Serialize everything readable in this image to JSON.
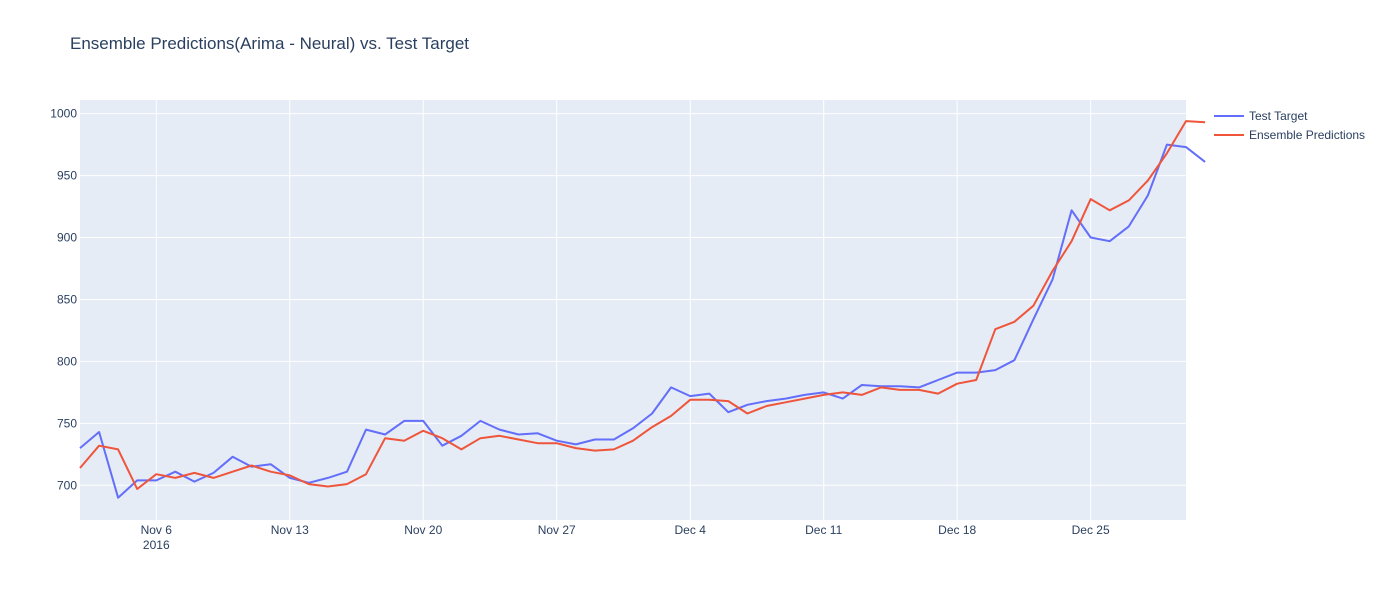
{
  "chart_data": {
    "type": "line",
    "title": "Ensemble Predictions(Arima - Neural) vs. Test Target",
    "xlabel": "",
    "ylabel": "",
    "x_start": "2016-11-02",
    "x_end": "2016-12-30",
    "xlim": [
      "2016-11-02",
      "2016-12-30"
    ],
    "ylim": [
      672,
      1011
    ],
    "y_ticks": [
      700,
      750,
      800,
      850,
      900,
      950,
      1000
    ],
    "x_ticks": [
      {
        "date": "2016-11-06",
        "label": "Nov 6",
        "sublabel": "2016"
      },
      {
        "date": "2016-11-13",
        "label": "Nov 13",
        "sublabel": ""
      },
      {
        "date": "2016-11-20",
        "label": "Nov 20",
        "sublabel": ""
      },
      {
        "date": "2016-11-27",
        "label": "Nov 27",
        "sublabel": ""
      },
      {
        "date": "2016-12-04",
        "label": "Dec 4",
        "sublabel": ""
      },
      {
        "date": "2016-12-11",
        "label": "Dec 11",
        "sublabel": ""
      },
      {
        "date": "2016-12-18",
        "label": "Dec 18",
        "sublabel": ""
      },
      {
        "date": "2016-12-25",
        "label": "Dec 25",
        "sublabel": ""
      }
    ],
    "grid": true,
    "legend_position": "top-right",
    "series": [
      {
        "name": "Test Target",
        "color": "#636efa",
        "values": [
          730,
          743,
          690,
          704,
          704,
          711,
          703,
          710,
          723,
          715,
          717,
          706,
          702,
          706,
          711,
          745,
          741,
          752,
          752,
          732,
          740,
          752,
          745,
          741,
          742,
          736,
          733,
          737,
          737,
          746,
          758,
          779,
          772,
          774,
          759,
          765,
          768,
          770,
          773,
          775,
          770,
          781,
          780,
          780,
          779,
          785,
          791,
          791,
          793,
          801,
          834,
          866,
          922,
          900,
          897,
          909,
          934,
          975,
          973,
          961
        ]
      },
      {
        "name": "Ensemble Predictions",
        "color": "#ef553b",
        "values": [
          714,
          732,
          729,
          697,
          709,
          706,
          710,
          706,
          711,
          716,
          711,
          708,
          701,
          699,
          701,
          709,
          738,
          736,
          744,
          738,
          729,
          738,
          740,
          737,
          734,
          734,
          730,
          728,
          729,
          736,
          747,
          756,
          769,
          769,
          768,
          758,
          764,
          767,
          770,
          773,
          775,
          773,
          779,
          777,
          777,
          774,
          782,
          785,
          826,
          832,
          845,
          873,
          897,
          931,
          922,
          930,
          946,
          968,
          994,
          993
        ]
      }
    ]
  }
}
